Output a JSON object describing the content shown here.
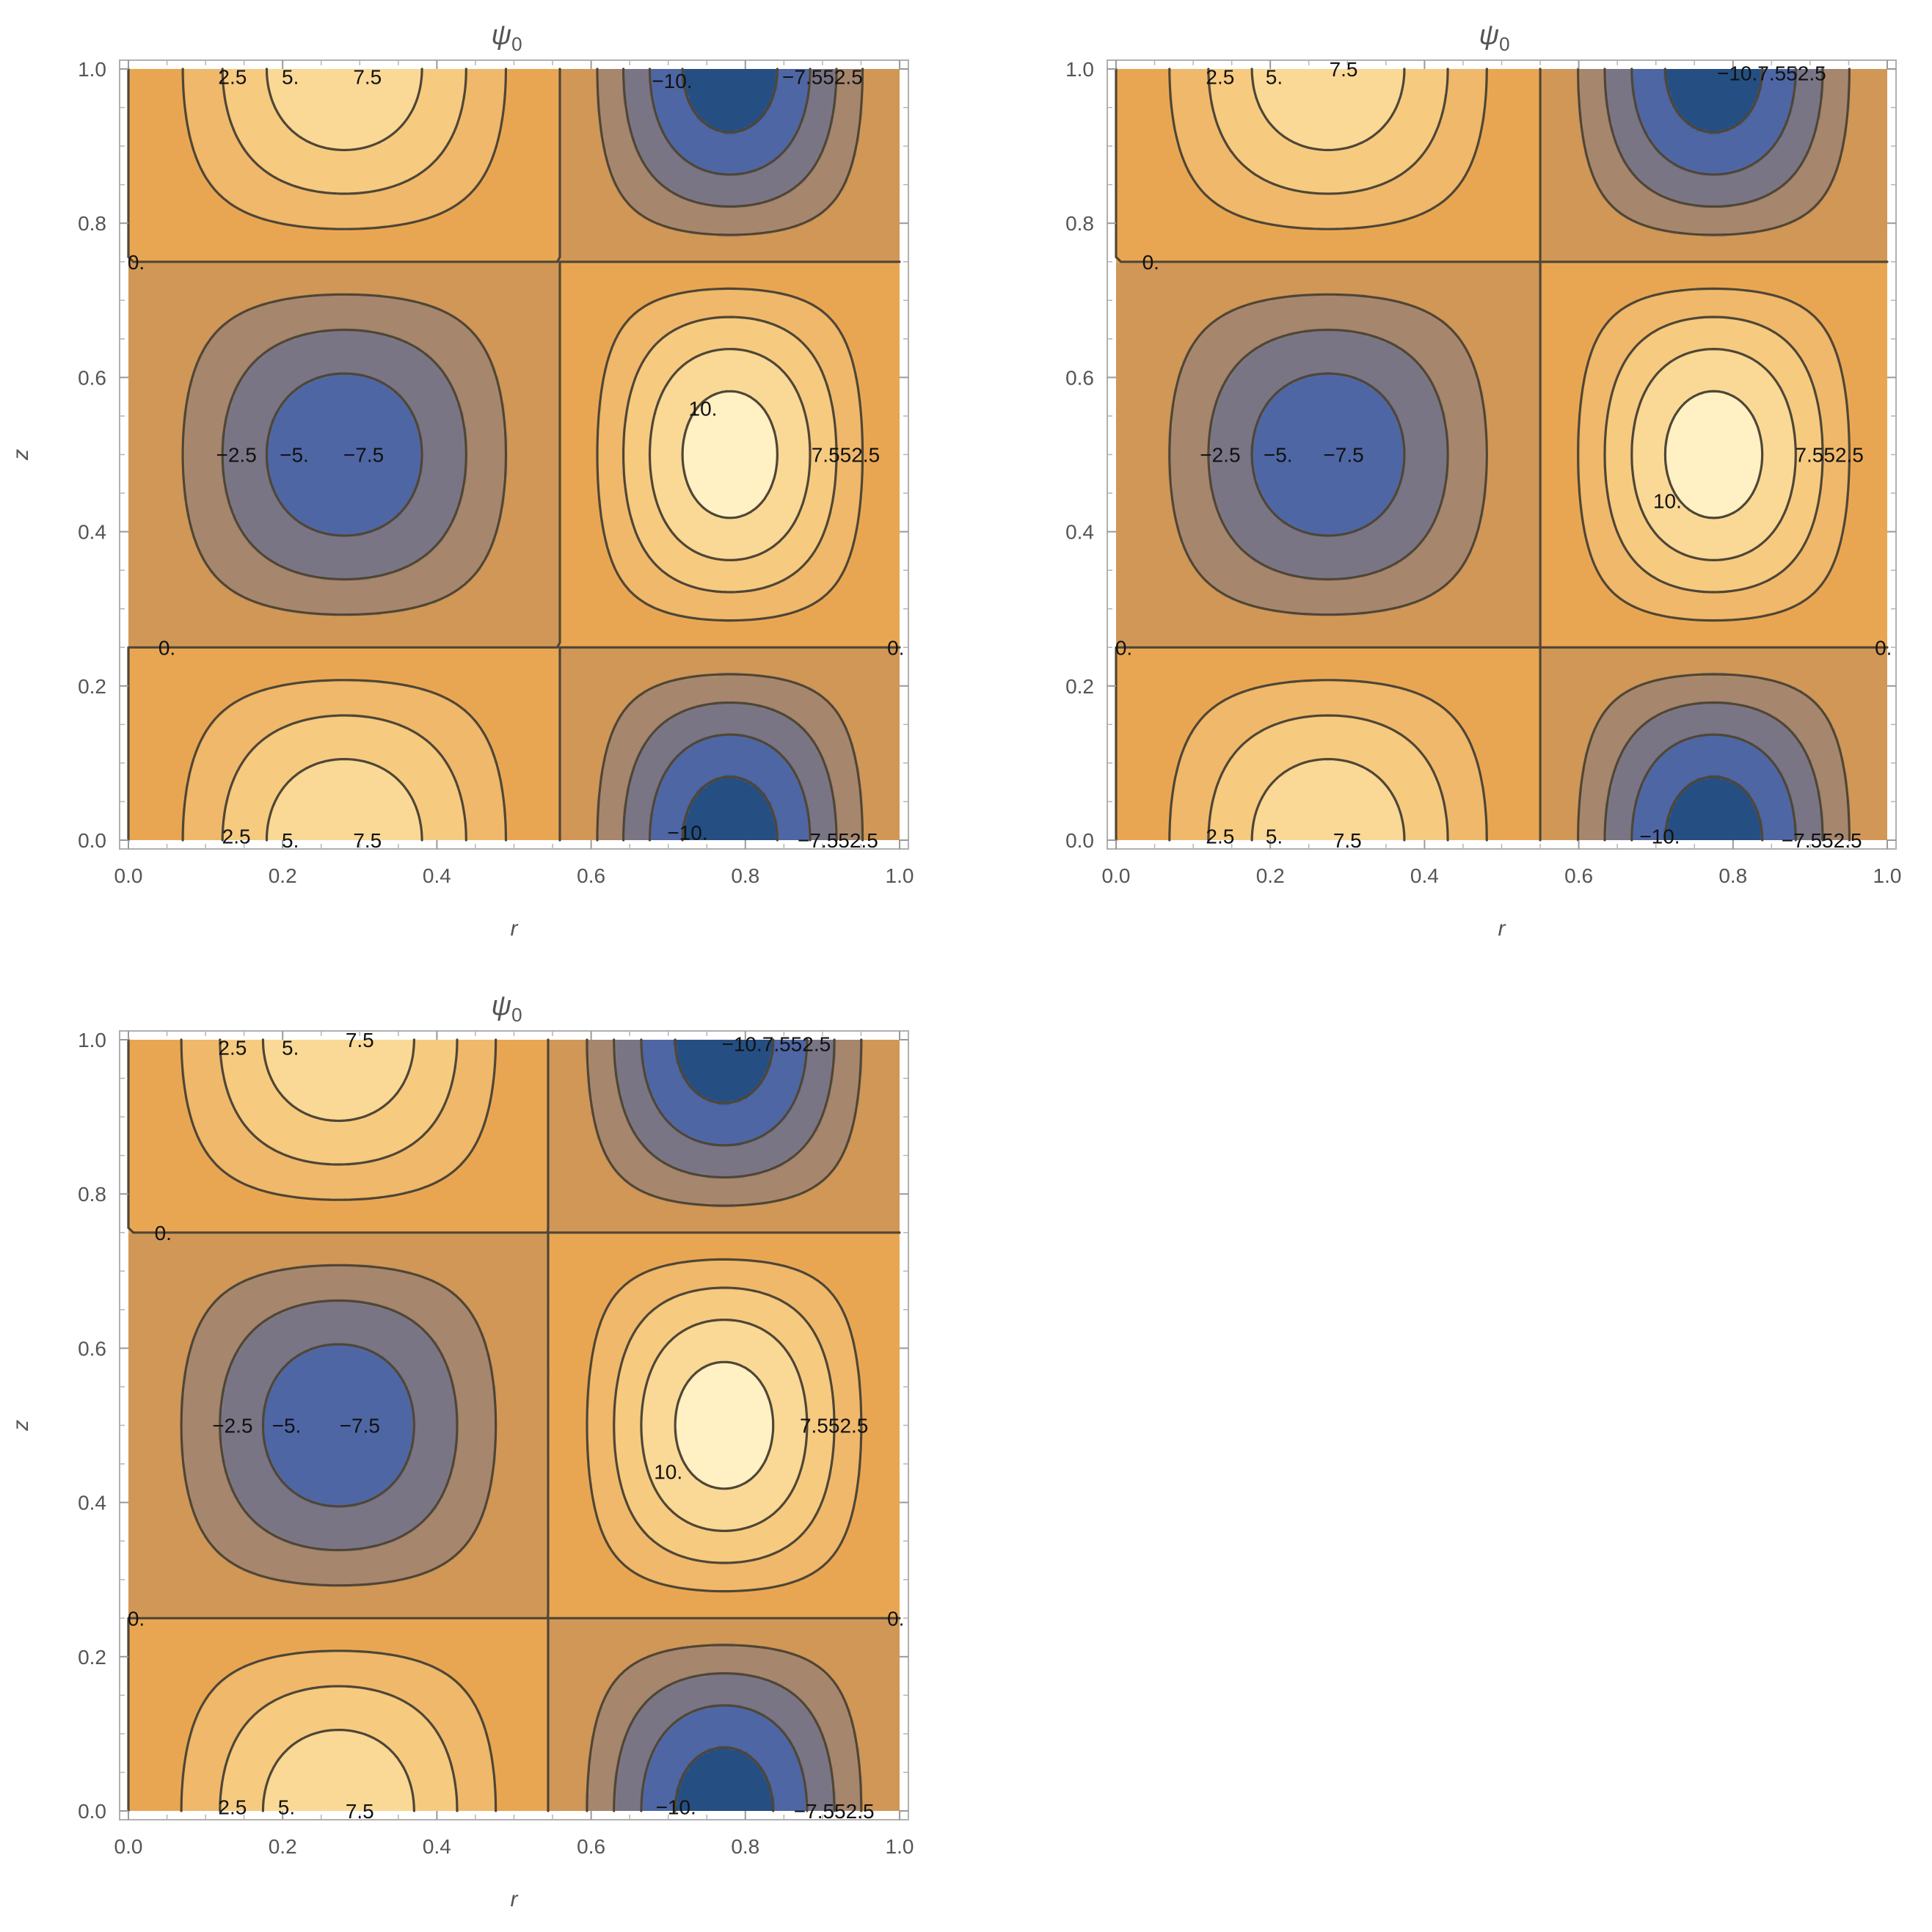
{
  "chart_data": [
    {
      "type": "contour",
      "title": "ψ",
      "title_subscript": "0",
      "xlabel": "r",
      "ylabel": "z",
      "xlim": [
        0,
        1
      ],
      "ylim": [
        0,
        1
      ],
      "xticks": [
        "0.0",
        "0.2",
        "0.4",
        "0.6",
        "0.8",
        "1.0"
      ],
      "yticks": [
        "0.0",
        "0.2",
        "0.4",
        "0.6",
        "0.8",
        "1.0"
      ],
      "node_r": 0.56,
      "z_nodes": [
        0.25,
        0.75
      ],
      "extrema": [
        {
          "r": 0.35,
          "z": 0.0,
          "value": 9.5
        },
        {
          "r": 0.35,
          "z": 1.0,
          "value": 9.5
        },
        {
          "r": 0.35,
          "z": 0.5,
          "value": -9.5
        },
        {
          "r": 0.8,
          "z": 0.5,
          "value": 11.5
        },
        {
          "r": 0.8,
          "z": 0.0,
          "value": -11.5
        },
        {
          "r": 0.8,
          "z": 1.0,
          "value": -11.5
        }
      ],
      "contour_levels": [
        -10,
        -7.5,
        -5,
        -2.5,
        0,
        2.5,
        5,
        7.5,
        10
      ],
      "contour_labels": [
        {
          "text": "2.5",
          "r": 0.135,
          "z": 0.99
        },
        {
          "text": "5.",
          "r": 0.21,
          "z": 0.99
        },
        {
          "text": "7.5",
          "r": 0.31,
          "z": 0.99
        },
        {
          "text": "−10.",
          "r": 0.705,
          "z": 0.985
        },
        {
          "text": "−7.552.5",
          "r": 0.9,
          "z": 0.99
        },
        {
          "text": "0.",
          "r": 0.01,
          "z": 0.75
        },
        {
          "text": "−2.5",
          "r": 0.14,
          "z": 0.5
        },
        {
          "text": "−5.",
          "r": 0.215,
          "z": 0.5
        },
        {
          "text": "−7.5",
          "r": 0.305,
          "z": 0.5
        },
        {
          "text": "10.",
          "r": 0.745,
          "z": 0.56
        },
        {
          "text": "7.552.5",
          "r": 0.93,
          "z": 0.5
        },
        {
          "text": "0.",
          "r": 0.05,
          "z": 0.25
        },
        {
          "text": "0.",
          "r": 0.995,
          "z": 0.25
        },
        {
          "text": "2.5",
          "r": 0.14,
          "z": 0.005
        },
        {
          "text": "5.",
          "r": 0.21,
          "z": 0.0
        },
        {
          "text": "7.5",
          "r": 0.31,
          "z": 0.0
        },
        {
          "text": "−10.",
          "r": 0.725,
          "z": 0.01
        },
        {
          "text": "−7.552.5",
          "r": 0.92,
          "z": 0.0
        }
      ]
    },
    {
      "type": "contour",
      "title": "ψ",
      "title_subscript": "0",
      "xlabel": "r",
      "ylabel": "z",
      "xlim": [
        0,
        1
      ],
      "ylim": [
        0,
        1
      ],
      "xticks": [
        "0.0",
        "0.2",
        "0.4",
        "0.6",
        "0.8",
        "1.0"
      ],
      "yticks": [
        "0.0",
        "0.2",
        "0.4",
        "0.6",
        "0.8",
        "1.0"
      ],
      "node_r": 0.55,
      "z_nodes": [
        0.25,
        0.75
      ],
      "extrema": [
        {
          "r": 0.34,
          "z": 0.0,
          "value": 9.5
        },
        {
          "r": 0.34,
          "z": 1.0,
          "value": 9.5
        },
        {
          "r": 0.34,
          "z": 0.5,
          "value": -9.5
        },
        {
          "r": 0.79,
          "z": 0.5,
          "value": 11.5
        },
        {
          "r": 0.79,
          "z": 0.0,
          "value": -11.5
        },
        {
          "r": 0.79,
          "z": 1.0,
          "value": -11.5
        }
      ],
      "contour_levels": [
        -10,
        -7.5,
        -5,
        -2.5,
        0,
        2.5,
        5,
        7.5,
        10
      ],
      "contour_labels": [
        {
          "text": "2.5",
          "r": 0.135,
          "z": 0.99
        },
        {
          "text": "5.",
          "r": 0.205,
          "z": 0.99
        },
        {
          "text": "7.5",
          "r": 0.295,
          "z": 1.0
        },
        {
          "text": "−10.7.552.5",
          "r": 0.85,
          "z": 0.995
        },
        {
          "text": "0.",
          "r": 0.045,
          "z": 0.75
        },
        {
          "text": "−2.5",
          "r": 0.135,
          "z": 0.5
        },
        {
          "text": "−5.",
          "r": 0.21,
          "z": 0.5
        },
        {
          "text": "−7.5",
          "r": 0.295,
          "z": 0.5
        },
        {
          "text": "10.",
          "r": 0.715,
          "z": 0.44
        },
        {
          "text": "7.552.5",
          "r": 0.925,
          "z": 0.5
        },
        {
          "text": "0.",
          "r": 0.01,
          "z": 0.25
        },
        {
          "text": "0.",
          "r": 0.995,
          "z": 0.25
        },
        {
          "text": "2.5",
          "r": 0.135,
          "z": 0.005
        },
        {
          "text": "5.",
          "r": 0.205,
          "z": 0.005
        },
        {
          "text": "7.5",
          "r": 0.3,
          "z": 0.0
        },
        {
          "text": "−10.",
          "r": 0.705,
          "z": 0.005
        },
        {
          "text": "−7.552.5",
          "r": 0.915,
          "z": 0.0
        }
      ]
    },
    {
      "type": "contour",
      "title": "ψ",
      "title_subscript": "0",
      "xlabel": "r",
      "ylabel": "z",
      "xlim": [
        0,
        1
      ],
      "ylim": [
        0,
        1
      ],
      "xticks": [
        "0.0",
        "0.2",
        "0.4",
        "0.6",
        "0.8",
        "1.0"
      ],
      "yticks": [
        "0.0",
        "0.2",
        "0.4",
        "0.6",
        "0.8",
        "1.0"
      ],
      "node_r": 0.545,
      "z_nodes": [
        0.25,
        0.75
      ],
      "extrema": [
        {
          "r": 0.34,
          "z": 0.0,
          "value": 9.5
        },
        {
          "r": 0.34,
          "z": 1.0,
          "value": 9.5
        },
        {
          "r": 0.34,
          "z": 0.5,
          "value": -9.5
        },
        {
          "r": 0.79,
          "z": 0.5,
          "value": 11.5
        },
        {
          "r": 0.79,
          "z": 0.0,
          "value": -11.5
        },
        {
          "r": 0.79,
          "z": 1.0,
          "value": -11.5
        }
      ],
      "contour_levels": [
        -10,
        -7.5,
        -5,
        -2.5,
        0,
        2.5,
        5,
        7.5,
        10
      ],
      "contour_labels": [
        {
          "text": "2.5",
          "r": 0.135,
          "z": 0.99
        },
        {
          "text": "5.",
          "r": 0.21,
          "z": 0.99
        },
        {
          "text": "7.5",
          "r": 0.3,
          "z": 1.0
        },
        {
          "text": "−10.7.552.5",
          "r": 0.84,
          "z": 0.995
        },
        {
          "text": "0.",
          "r": 0.045,
          "z": 0.75
        },
        {
          "text": "−2.5",
          "r": 0.135,
          "z": 0.5
        },
        {
          "text": "−5.",
          "r": 0.205,
          "z": 0.5
        },
        {
          "text": "−7.5",
          "r": 0.3,
          "z": 0.5
        },
        {
          "text": "10.",
          "r": 0.7,
          "z": 0.44
        },
        {
          "text": "7.552.5",
          "r": 0.915,
          "z": 0.5
        },
        {
          "text": "0.",
          "r": 0.01,
          "z": 0.25
        },
        {
          "text": "0.",
          "r": 0.995,
          "z": 0.25
        },
        {
          "text": "2.5",
          "r": 0.135,
          "z": 0.005
        },
        {
          "text": "5.",
          "r": 0.205,
          "z": 0.005
        },
        {
          "text": "7.5",
          "r": 0.3,
          "z": 0.0
        },
        {
          "text": "−10.",
          "r": 0.71,
          "z": 0.005
        },
        {
          "text": "−7.552.5",
          "r": 0.915,
          "z": 0.0
        }
      ]
    }
  ]
}
